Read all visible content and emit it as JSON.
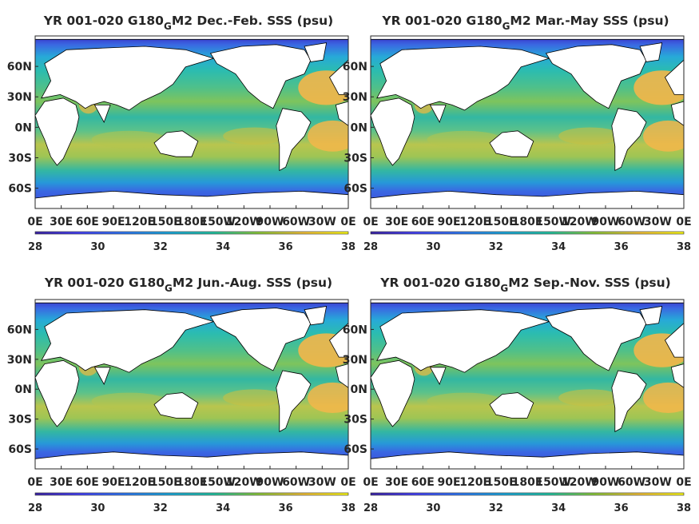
{
  "chart_data": [
    {
      "type": "heatmap",
      "title": "YR 001-020 G180",
      "title_subscript": "G",
      "title_suffix": "M2 Dec.-Feb. SSS (psu)",
      "xtick_labels": [
        "0E",
        "30E",
        "60E",
        "90E",
        "120E",
        "150E",
        "180E",
        "150W",
        "120W",
        "90W",
        "60W",
        "30W",
        "0E"
      ],
      "ytick_labels": [
        "60N",
        "30N",
        "0N",
        "30S",
        "60S"
      ],
      "yticks": [
        60,
        30,
        0,
        -30,
        -60
      ],
      "xlim": [
        0,
        360
      ],
      "ylim": [
        -80,
        90
      ],
      "colorbar": {
        "range": [
          28,
          38
        ],
        "tick_labels": [
          "28",
          "30",
          "32",
          "34",
          "36",
          "38"
        ]
      }
    },
    {
      "type": "heatmap",
      "title": "YR 001-020 G180",
      "title_subscript": "G",
      "title_suffix": "M2 Mar.-May SSS (psu)",
      "xtick_labels": [
        "0E",
        "30E",
        "60E",
        "90E",
        "120E",
        "150E",
        "180E",
        "150W",
        "120W",
        "90W",
        "60W",
        "30W",
        "0E"
      ],
      "ytick_labels": [
        "60N",
        "30N",
        "0N",
        "30S",
        "60S"
      ],
      "yticks": [
        60,
        30,
        0,
        -30,
        -60
      ],
      "xlim": [
        0,
        360
      ],
      "ylim": [
        -80,
        90
      ],
      "colorbar": {
        "range": [
          28,
          38
        ],
        "tick_labels": [
          "28",
          "30",
          "32",
          "34",
          "36",
          "38"
        ]
      }
    },
    {
      "type": "heatmap",
      "title": "YR 001-020 G180",
      "title_subscript": "G",
      "title_suffix": "M2 Jun.-Aug. SSS (psu)",
      "xtick_labels": [
        "0E",
        "30E",
        "60E",
        "90E",
        "120E",
        "150E",
        "180E",
        "150W",
        "120W",
        "90W",
        "60W",
        "30W",
        "0E"
      ],
      "ytick_labels": [
        "60N",
        "30N",
        "0N",
        "30S",
        "60S"
      ],
      "yticks": [
        60,
        30,
        0,
        -30,
        -60
      ],
      "xlim": [
        0,
        360
      ],
      "ylim": [
        -80,
        90
      ],
      "colorbar": {
        "range": [
          28,
          38
        ],
        "tick_labels": [
          "28",
          "30",
          "32",
          "34",
          "36",
          "38"
        ]
      }
    },
    {
      "type": "heatmap",
      "title": "YR 001-020 G180",
      "title_subscript": "G",
      "title_suffix": "M2 Sep.-Nov. SSS (psu)",
      "xtick_labels": [
        "0E",
        "30E",
        "60E",
        "90E",
        "120E",
        "150E",
        "180E",
        "150W",
        "120W",
        "90W",
        "60W",
        "30W",
        "0E"
      ],
      "ytick_labels": [
        "60N",
        "30N",
        "0N",
        "30S",
        "60S"
      ],
      "yticks": [
        60,
        30,
        0,
        -30,
        -60
      ],
      "xlim": [
        0,
        360
      ],
      "ylim": [
        -80,
        90
      ],
      "colorbar": {
        "range": [
          28,
          38
        ],
        "tick_labels": [
          "28",
          "30",
          "32",
          "34",
          "36",
          "38"
        ]
      }
    }
  ],
  "colormap": [
    "#3e26a8",
    "#4743f8",
    "#2f7af6",
    "#1caadf",
    "#24c6a4",
    "#8ecc3c",
    "#f5c23a",
    "#fbfb18"
  ],
  "colors": {
    "land": "#ffffff",
    "axes": "#262626",
    "ocean_salty": "#f3b64a",
    "ocean_mid": "#33b7a2",
    "ocean_fresh": "#3a67e2"
  }
}
